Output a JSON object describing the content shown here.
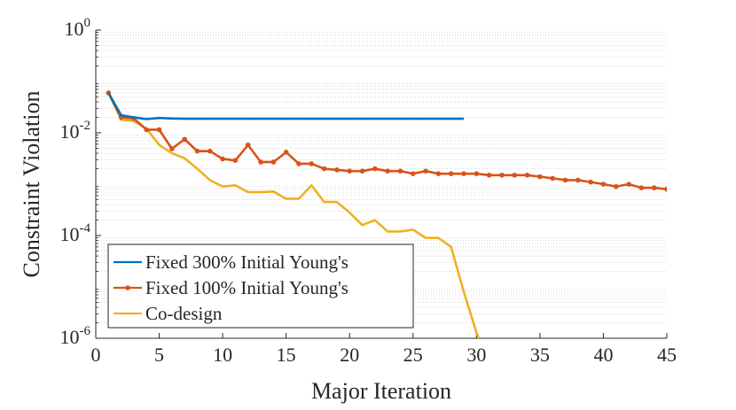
{
  "chart_data": {
    "type": "line",
    "title": "",
    "xlabel": "Major Iteration",
    "ylabel": "Constraint Violation",
    "xlim": [
      0,
      45
    ],
    "ylim": [
      1e-06,
      1
    ],
    "yscale": "log",
    "grid": "minor-y dotted",
    "legend_position": "bottom-left",
    "x_ticks": [
      0,
      5,
      10,
      15,
      20,
      25,
      30,
      35,
      40,
      45
    ],
    "x_tick_labels": [
      "0",
      "5",
      "10",
      "15",
      "20",
      "25",
      "30",
      "35",
      "40",
      "45"
    ],
    "y_ticks": [
      1e-06,
      0.0001,
      0.01,
      1
    ],
    "y_tick_labels": [
      {
        "base": "10",
        "exp": "-6"
      },
      {
        "base": "10",
        "exp": "-4"
      },
      {
        "base": "10",
        "exp": "-2"
      },
      {
        "base": "10",
        "exp": "0"
      }
    ],
    "series": [
      {
        "name": "Fixed 300% Initial Young's",
        "color": "#0072BD",
        "marker": "none",
        "x": [
          1,
          2,
          3,
          4,
          5,
          6,
          7,
          8,
          9,
          10,
          11,
          12,
          13,
          14,
          15,
          16,
          17,
          18,
          19,
          20,
          21,
          22,
          23,
          24,
          25,
          26,
          27,
          28,
          29
        ],
        "y": [
          0.06,
          0.022,
          0.02,
          0.0185,
          0.0195,
          0.019,
          0.0188,
          0.0188,
          0.0188,
          0.0188,
          0.0188,
          0.0188,
          0.0188,
          0.0188,
          0.0188,
          0.0188,
          0.0188,
          0.0188,
          0.0188,
          0.0188,
          0.0188,
          0.0188,
          0.0188,
          0.0188,
          0.0188,
          0.0188,
          0.0188,
          0.0188,
          0.0188
        ]
      },
      {
        "name": "Fixed 100% Initial Young's",
        "color": "#D95319",
        "marker": "dot",
        "x": [
          1,
          2,
          3,
          4,
          5,
          6,
          7,
          8,
          9,
          10,
          11,
          12,
          13,
          14,
          15,
          16,
          17,
          18,
          19,
          20,
          21,
          22,
          23,
          24,
          25,
          26,
          27,
          28,
          29,
          30,
          31,
          32,
          33,
          34,
          35,
          36,
          37,
          38,
          39,
          40,
          41,
          42,
          43,
          44,
          45
        ],
        "y": [
          0.06,
          0.02,
          0.019,
          0.0115,
          0.0115,
          0.0049,
          0.0075,
          0.0044,
          0.0044,
          0.0031,
          0.0029,
          0.0058,
          0.0027,
          0.0027,
          0.0042,
          0.0025,
          0.0025,
          0.002,
          0.0019,
          0.0018,
          0.0018,
          0.002,
          0.0018,
          0.0018,
          0.0016,
          0.0018,
          0.0016,
          0.0016,
          0.0016,
          0.0016,
          0.0015,
          0.0015,
          0.0015,
          0.0015,
          0.0014,
          0.0013,
          0.0012,
          0.0012,
          0.0011,
          0.001,
          0.0009,
          0.001,
          0.00085,
          0.00085,
          0.0008
        ]
      },
      {
        "name": "Co-design",
        "color": "#EDB120",
        "marker": "none",
        "x": [
          1,
          2,
          3,
          4,
          5,
          6,
          7,
          8,
          9,
          10,
          11,
          12,
          13,
          14,
          15,
          16,
          17,
          18,
          19,
          20,
          21,
          22,
          23,
          24,
          25,
          26,
          27,
          28,
          29,
          30,
          31
        ],
        "y": [
          0.06,
          0.018,
          0.017,
          0.012,
          0.0058,
          0.004,
          0.0032,
          0.002,
          0.0012,
          0.0009,
          0.00095,
          0.0007,
          0.0007,
          0.00072,
          0.00052,
          0.00052,
          0.00095,
          0.00045,
          0.00045,
          0.00028,
          0.00016,
          0.0002,
          0.00012,
          0.00012,
          0.00013,
          9e-05,
          9e-05,
          6e-05,
          8e-06,
          1.3e-06,
          3e-07
        ]
      }
    ]
  }
}
